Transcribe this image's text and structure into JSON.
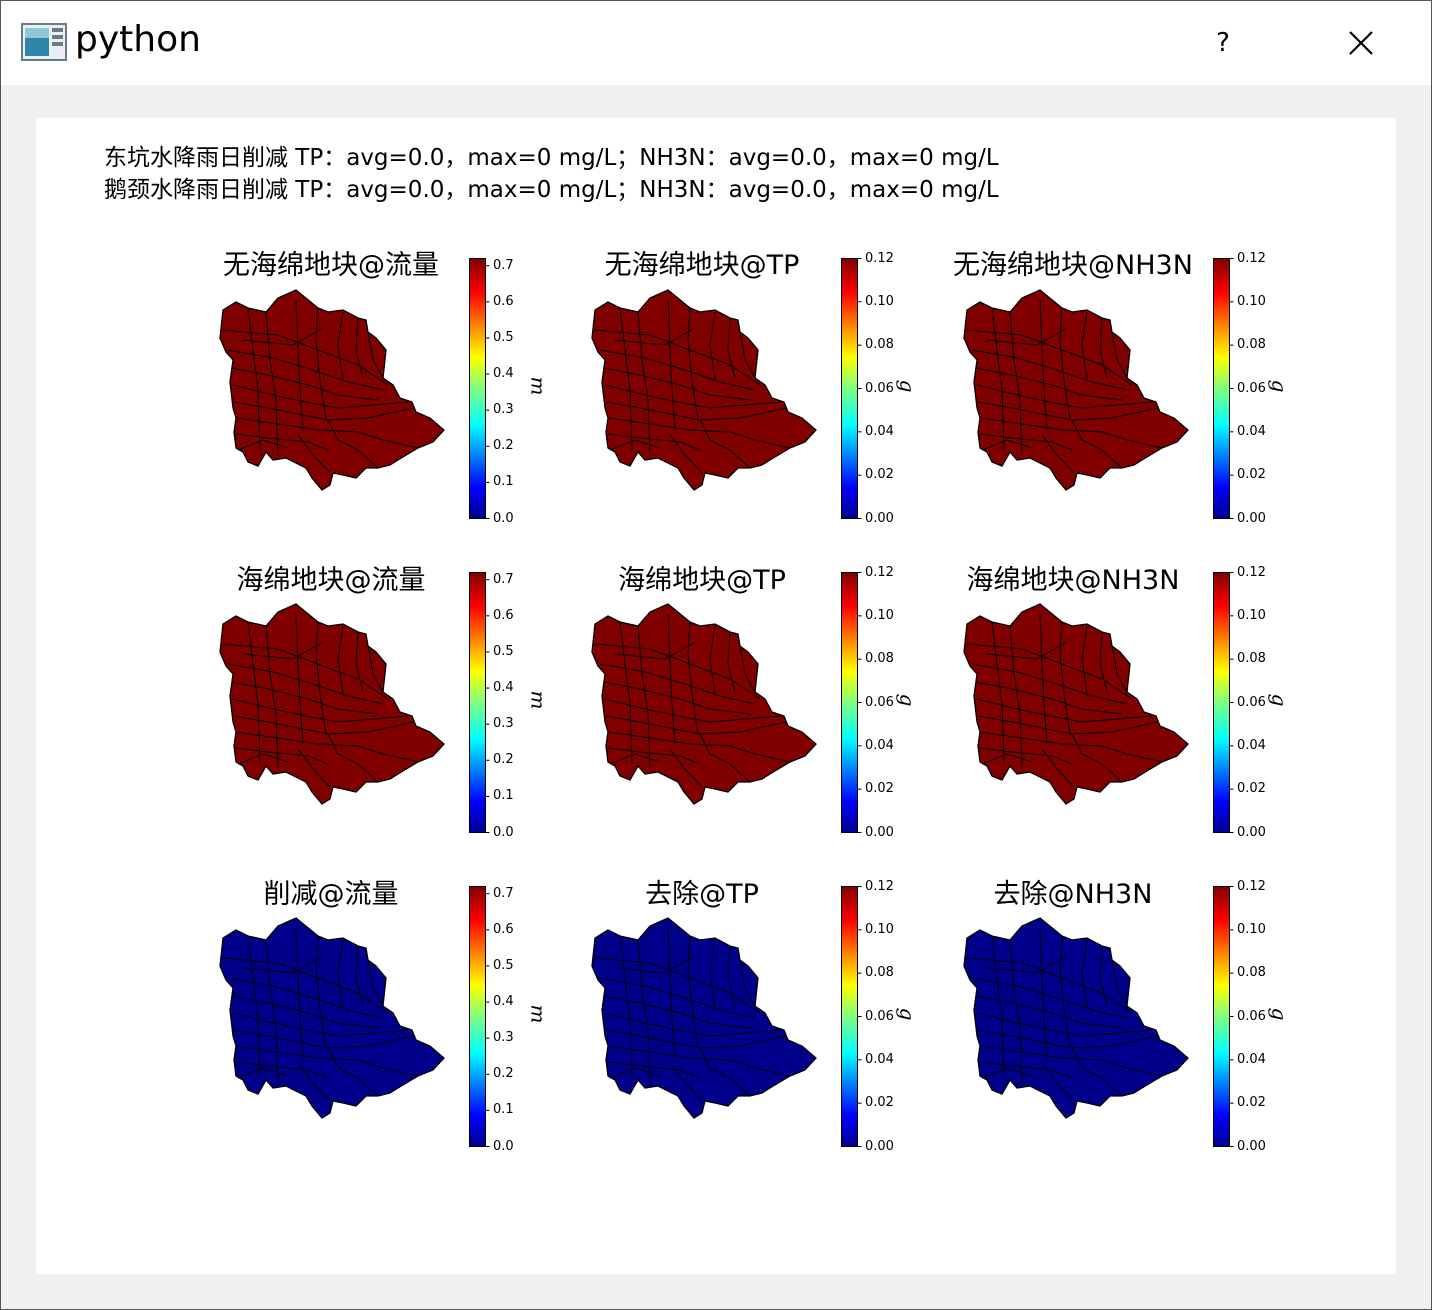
{
  "window": {
    "title": "python",
    "help_label": "?"
  },
  "header": {
    "line1": "东坑水降雨日削减 TP：avg=0.0，max=0 mg/L；NH3N：avg=0.0，max=0 mg/L",
    "line2": "鹅颈水降雨日削减 TP：avg=0.0，max=0 mg/L；NH3N：avg=0.0，max=0 mg/L"
  },
  "colors": {
    "high": "#800000",
    "low": "#00008b",
    "border": "#000000"
  },
  "colorbar_flow": {
    "unit": "m",
    "ticks": [
      "0.0",
      "0.1",
      "0.2",
      "0.3",
      "0.4",
      "0.5",
      "0.6",
      "0.7"
    ],
    "max": 0.72
  },
  "colorbar_conc": {
    "unit": "g",
    "ticks": [
      "0.00",
      "0.02",
      "0.04",
      "0.06",
      "0.08",
      "0.10",
      "0.12"
    ],
    "max": 0.12
  },
  "maps": [
    {
      "title": "无海绵地块@流量",
      "fill": "high",
      "colorbar": "flow"
    },
    {
      "title": "无海绵地块@TP",
      "fill": "high",
      "colorbar": "conc"
    },
    {
      "title": "无海绵地块@NH3N",
      "fill": "high",
      "colorbar": "conc"
    },
    {
      "title": "海绵地块@流量",
      "fill": "high",
      "colorbar": "flow"
    },
    {
      "title": "海绵地块@TP",
      "fill": "high",
      "colorbar": "conc"
    },
    {
      "title": "海绵地块@NH3N",
      "fill": "high",
      "colorbar": "conc"
    },
    {
      "title": "削减@流量",
      "fill": "low",
      "colorbar": "flow"
    },
    {
      "title": "去除@TP",
      "fill": "low",
      "colorbar": "conc"
    },
    {
      "title": "去除@NH3N",
      "fill": "low",
      "colorbar": "conc"
    }
  ]
}
